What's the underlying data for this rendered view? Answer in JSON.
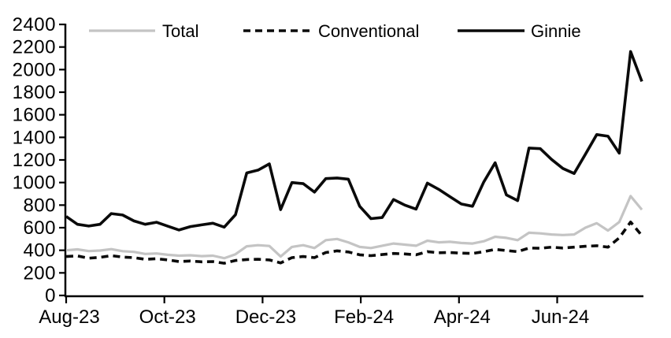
{
  "chart_data": {
    "type": "line",
    "title": "",
    "grid": false,
    "n_points": 52,
    "x_axis": {
      "tick_labels": [
        "Aug-23",
        "Oct-23",
        "Dec-23",
        "Feb-24",
        "Apr-24",
        "Jun-24"
      ]
    },
    "y_axis": {
      "min": 0,
      "max": 2400,
      "step": 200,
      "tick_labels": [
        "0",
        "200",
        "400",
        "600",
        "800",
        "1000",
        "1200",
        "1400",
        "1600",
        "1800",
        "2000",
        "2200",
        "2400"
      ]
    },
    "legend": {
      "position": "top",
      "entries": [
        "Total",
        "Conventional",
        "Ginnie"
      ]
    },
    "series": [
      {
        "name": "Total",
        "color": "#c4c4c4",
        "dash": "",
        "width": 3.2,
        "values": [
          400,
          408,
          393,
          398,
          410,
          392,
          386,
          368,
          372,
          360,
          352,
          356,
          348,
          352,
          330,
          365,
          435,
          445,
          438,
          345,
          430,
          445,
          420,
          490,
          500,
          470,
          430,
          420,
          440,
          460,
          450,
          440,
          485,
          470,
          475,
          465,
          460,
          480,
          520,
          510,
          490,
          555,
          550,
          540,
          535,
          540,
          600,
          640,
          575,
          650,
          880,
          760
        ]
      },
      {
        "name": "Conventional",
        "color": "#0a0a0a",
        "dash": "9 6",
        "width": 3.6,
        "values": [
          345,
          350,
          330,
          338,
          352,
          340,
          335,
          320,
          325,
          315,
          300,
          305,
          298,
          300,
          285,
          310,
          318,
          320,
          315,
          288,
          335,
          345,
          335,
          380,
          395,
          385,
          360,
          352,
          362,
          372,
          368,
          360,
          388,
          378,
          380,
          375,
          372,
          388,
          408,
          398,
          388,
          420,
          418,
          428,
          420,
          428,
          435,
          440,
          428,
          510,
          650,
          530
        ]
      },
      {
        "name": "Ginnie",
        "color": "#0a0a0a",
        "dash": "",
        "width": 3.6,
        "values": [
          700,
          630,
          615,
          630,
          725,
          712,
          660,
          630,
          648,
          613,
          580,
          610,
          625,
          640,
          605,
          715,
          1085,
          1110,
          1165,
          760,
          1000,
          990,
          915,
          1035,
          1040,
          1030,
          790,
          680,
          690,
          850,
          800,
          765,
          995,
          940,
          875,
          810,
          790,
          1005,
          1175,
          890,
          840,
          1305,
          1300,
          1205,
          1125,
          1080,
          1250,
          1425,
          1410,
          1260,
          2160,
          1895
        ]
      }
    ],
    "colors": {
      "background": "#ffffff",
      "axis": "#000000"
    }
  }
}
